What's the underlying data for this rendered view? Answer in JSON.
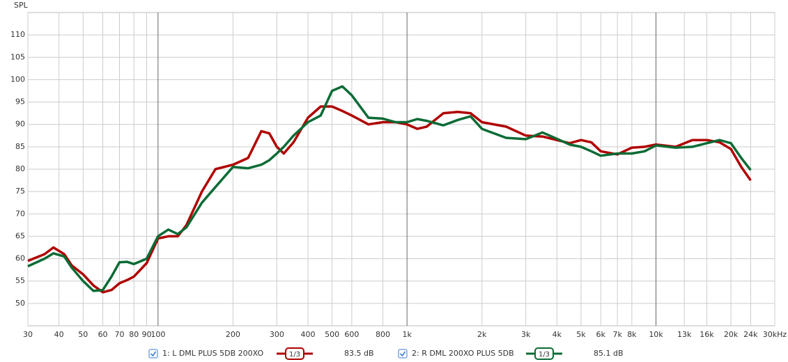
{
  "chart_data": {
    "type": "line",
    "y_label": "SPL",
    "log_x": true,
    "grid": true,
    "xlim": [
      30,
      30000
    ],
    "ylim": [
      45,
      115
    ],
    "xticks": [
      30,
      40,
      50,
      60,
      70,
      80,
      90,
      100,
      200,
      300,
      400,
      500,
      600,
      800,
      {
        "value": 1000,
        "label": "1k"
      },
      {
        "value": 2000,
        "label": "2k"
      },
      {
        "value": 3000,
        "label": "3k"
      },
      {
        "value": 4000,
        "label": "4k"
      },
      {
        "value": 5000,
        "label": "5k"
      },
      {
        "value": 6000,
        "label": "6k"
      },
      {
        "value": 7000,
        "label": "7k"
      },
      {
        "value": 8000,
        "label": "8k"
      },
      {
        "value": 10000,
        "label": "10k"
      },
      {
        "value": 13000,
        "label": "13k"
      },
      {
        "value": 16000,
        "label": "16k"
      },
      {
        "value": 20000,
        "label": "20k"
      },
      {
        "value": 24000,
        "label": "24k"
      },
      {
        "value": 30000,
        "label": "30kHz"
      }
    ],
    "yticks": [
      50,
      55,
      60,
      65,
      70,
      75,
      80,
      85,
      90,
      95,
      100,
      105,
      110
    ],
    "x": [
      30,
      35,
      38,
      42,
      45,
      50,
      55,
      60,
      65,
      70,
      75,
      80,
      90,
      100,
      110,
      120,
      130,
      150,
      170,
      200,
      230,
      260,
      280,
      300,
      320,
      350,
      400,
      450,
      500,
      550,
      600,
      700,
      800,
      900,
      1000,
      1100,
      1200,
      1400,
      1600,
      1800,
      2000,
      2500,
      3000,
      3500,
      4000,
      4500,
      5000,
      5500,
      6000,
      7000,
      8000,
      9000,
      10000,
      12000,
      14000,
      16000,
      18000,
      20000,
      22000,
      24000
    ],
    "series": [
      {
        "name": "1: L DML PLUS 5DB 200XO",
        "color": "#b00000",
        "smoothing": "1/3",
        "level": "83.5 dB",
        "values": [
          59.5,
          61,
          62.5,
          61,
          58.5,
          56.5,
          54,
          52.5,
          53,
          54.5,
          55.2,
          56,
          59,
          64.5,
          65,
          65,
          67.5,
          75,
          80,
          81,
          82.5,
          88.5,
          88,
          85,
          83.5,
          86,
          91.5,
          94,
          94,
          93,
          92,
          90,
          90.5,
          90.5,
          90,
          89,
          89.5,
          92.5,
          92.8,
          92.5,
          90.5,
          89.5,
          87.5,
          87.3,
          86.5,
          85.8,
          86.5,
          86,
          84,
          83.3,
          84.8,
          85,
          85.5,
          85,
          86.5,
          86.5,
          86,
          84.5,
          80.5,
          77.5
        ]
      },
      {
        "name": "2: R DML 200XO PLUS 5DB",
        "color": "#0b6b35",
        "smoothing": "1/3",
        "level": "85.1 dB",
        "values": [
          58.3,
          60,
          61.2,
          60.5,
          58,
          55,
          52.8,
          53,
          56,
          59.2,
          59.3,
          58.8,
          60,
          65,
          66.5,
          65.5,
          67,
          72.5,
          76,
          80.5,
          80.2,
          81,
          82,
          83.5,
          85,
          87.5,
          90.5,
          92,
          97.5,
          98.5,
          96.5,
          91.5,
          91.3,
          90.5,
          90.5,
          91.2,
          90.8,
          89.8,
          91,
          91.8,
          89,
          87,
          86.7,
          88.2,
          86.8,
          85.5,
          85,
          84,
          83,
          83.5,
          83.5,
          84,
          85.3,
          84.8,
          85,
          85.8,
          86.5,
          85.8,
          82.5,
          79.8
        ]
      }
    ]
  }
}
